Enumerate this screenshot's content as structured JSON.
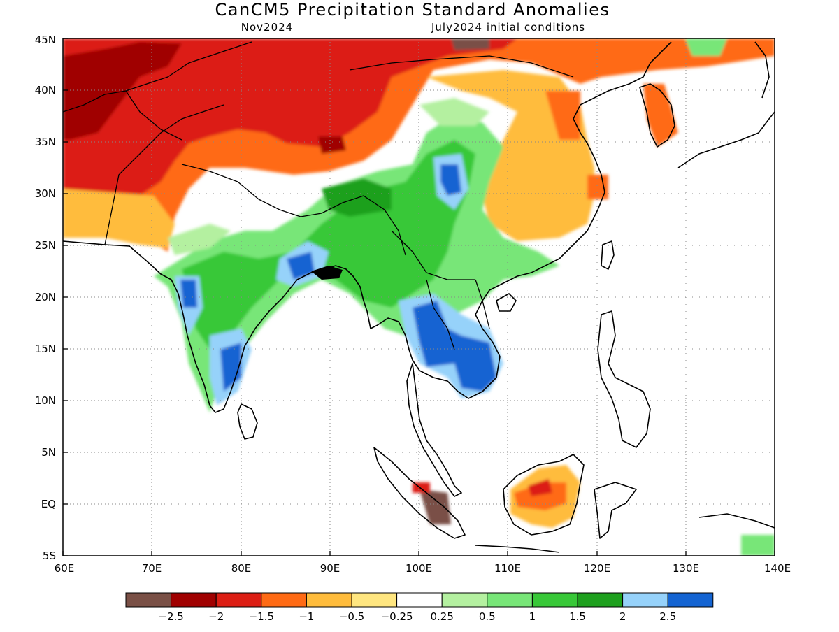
{
  "title": "CanCM5 Precipitation Standard Anomalies",
  "subtitle_left": "Nov2024",
  "subtitle_right": "July2024 initial conditions",
  "map": {
    "lon_range": [
      60,
      140
    ],
    "lat_range": [
      -5,
      45
    ],
    "x_ticks": [
      "60E",
      "70E",
      "80E",
      "90E",
      "100E",
      "110E",
      "120E",
      "130E",
      "140E"
    ],
    "y_ticks": [
      "5S",
      "EQ",
      "5N",
      "10N",
      "15N",
      "20N",
      "25N",
      "30N",
      "35N",
      "40N",
      "45N"
    ],
    "grid": "dotted"
  },
  "legend": {
    "colors": [
      "#7a5046",
      "#a00000",
      "#dc1e14",
      "#ff6a14",
      "#ffbc3c",
      "#ffe680",
      "#ffffff",
      "#b4f0a0",
      "#78e678",
      "#38c838",
      "#1ea01e",
      "#96d2fa",
      "#1464d2"
    ],
    "labels": [
      "−2.5",
      "−2",
      "−1.5",
      "−1",
      "−0.5",
      "−0.25",
      "0.25",
      "0.5",
      "1",
      "1.5",
      "2",
      "2.5"
    ]
  }
}
